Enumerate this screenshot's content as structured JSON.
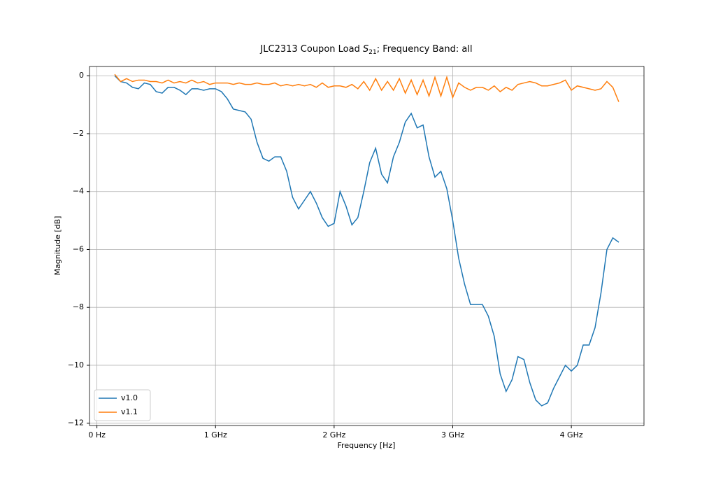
{
  "chart_data": {
    "type": "line",
    "title": [
      "JLC2313 Coupon Load ",
      "S",
      "21",
      "; Frequency Band: all"
    ],
    "x_label": "Frequency [Hz]",
    "y_label": "Magnitude [dB]",
    "x": [
      150000000,
      200000000,
      250000000,
      300000000,
      350000000,
      400000000,
      450000000,
      500000000,
      550000000,
      600000000,
      650000000,
      700000000,
      750000000,
      800000000,
      850000000,
      900000000,
      950000000,
      1000000000,
      1050000000,
      1100000000,
      1150000000,
      1200000000,
      1250000000,
      1300000000,
      1350000000,
      1400000000,
      1450000000,
      1500000000,
      1550000000,
      1600000000,
      1650000000,
      1700000000,
      1750000000,
      1800000000,
      1850000000,
      1900000000,
      1950000000,
      2000000000,
      2050000000,
      2100000000,
      2150000000,
      2200000000,
      2250000000,
      2300000000,
      2350000000,
      2400000000,
      2450000000,
      2500000000,
      2550000000,
      2600000000,
      2650000000,
      2700000000,
      2750000000,
      2800000000,
      2850000000,
      2900000000,
      2950000000,
      3000000000,
      3050000000,
      3100000000,
      3150000000,
      3200000000,
      3250000000,
      3300000000,
      3350000000,
      3400000000,
      3450000000,
      3500000000,
      3550000000,
      3600000000,
      3650000000,
      3700000000,
      3750000000,
      3800000000,
      3850000000,
      3900000000,
      3950000000,
      4000000000,
      4050000000,
      4100000000,
      4150000000,
      4200000000,
      4250000000,
      4300000000,
      4350000000,
      4400000000
    ],
    "series": [
      {
        "name": "v1.0",
        "color": "#1f77b4",
        "values": [
          0.0,
          -0.2,
          -0.25,
          -0.4,
          -0.45,
          -0.25,
          -0.3,
          -0.55,
          -0.6,
          -0.4,
          -0.4,
          -0.5,
          -0.65,
          -0.45,
          -0.45,
          -0.5,
          -0.45,
          -0.45,
          -0.55,
          -0.8,
          -1.15,
          -1.2,
          -1.25,
          -1.5,
          -2.3,
          -2.85,
          -2.95,
          -2.8,
          -2.8,
          -3.3,
          -4.2,
          -4.6,
          -4.3,
          -4.0,
          -4.4,
          -4.9,
          -5.2,
          -5.1,
          -4.0,
          -4.5,
          -5.15,
          -4.9,
          -4.0,
          -3.0,
          -2.5,
          -3.4,
          -3.7,
          -2.8,
          -2.3,
          -1.6,
          -1.3,
          -1.8,
          -1.7,
          -2.8,
          -3.5,
          -3.3,
          -3.9,
          -5.0,
          -6.3,
          -7.2,
          -7.9,
          -7.9,
          -7.9,
          -8.3,
          -9.0,
          -10.3,
          -10.9,
          -10.5,
          -9.7,
          -9.8,
          -10.6,
          -11.2,
          -11.4,
          -11.3,
          -10.8,
          -10.4,
          -10.0,
          -10.2,
          -10.0,
          -9.3,
          -9.3,
          -8.7,
          -7.5,
          -6.0,
          -5.6,
          -5.75
        ]
      },
      {
        "name": "v1.1",
        "color": "#ff7f0e",
        "values": [
          0.05,
          -0.2,
          -0.1,
          -0.2,
          -0.15,
          -0.15,
          -0.2,
          -0.2,
          -0.25,
          -0.15,
          -0.25,
          -0.2,
          -0.25,
          -0.15,
          -0.25,
          -0.2,
          -0.3,
          -0.25,
          -0.25,
          -0.25,
          -0.3,
          -0.25,
          -0.3,
          -0.3,
          -0.25,
          -0.3,
          -0.3,
          -0.25,
          -0.35,
          -0.3,
          -0.35,
          -0.3,
          -0.35,
          -0.3,
          -0.4,
          -0.25,
          -0.4,
          -0.35,
          -0.35,
          -0.4,
          -0.3,
          -0.45,
          -0.2,
          -0.5,
          -0.1,
          -0.5,
          -0.2,
          -0.5,
          -0.1,
          -0.6,
          -0.15,
          -0.65,
          -0.15,
          -0.7,
          -0.05,
          -0.7,
          -0.05,
          -0.75,
          -0.25,
          -0.4,
          -0.5,
          -0.4,
          -0.4,
          -0.5,
          -0.35,
          -0.55,
          -0.4,
          -0.5,
          -0.3,
          -0.25,
          -0.2,
          -0.25,
          -0.35,
          -0.35,
          -0.3,
          -0.25,
          -0.15,
          -0.5,
          -0.35,
          -0.4,
          -0.45,
          -0.5,
          -0.45,
          -0.2,
          -0.4,
          -0.9
        ]
      }
    ],
    "xlim": [
      -62500000,
      4612500000
    ],
    "xticks": [
      {
        "value": 0,
        "label": "0 Hz"
      },
      {
        "value": 1000000000,
        "label": "1 GHz"
      },
      {
        "value": 2000000000,
        "label": "2 GHz"
      },
      {
        "value": 3000000000,
        "label": "3 GHz"
      },
      {
        "value": 4000000000,
        "label": "4 GHz"
      }
    ],
    "ylim": [
      -12.08,
      0.32
    ],
    "yticks": [
      {
        "value": -12,
        "label": "−12"
      },
      {
        "value": -10,
        "label": "−10"
      },
      {
        "value": -8,
        "label": "−8"
      },
      {
        "value": -6,
        "label": "−6"
      },
      {
        "value": -4,
        "label": "−4"
      },
      {
        "value": -2,
        "label": "−2"
      },
      0
    ],
    "grid": true,
    "legend": "lower left"
  }
}
